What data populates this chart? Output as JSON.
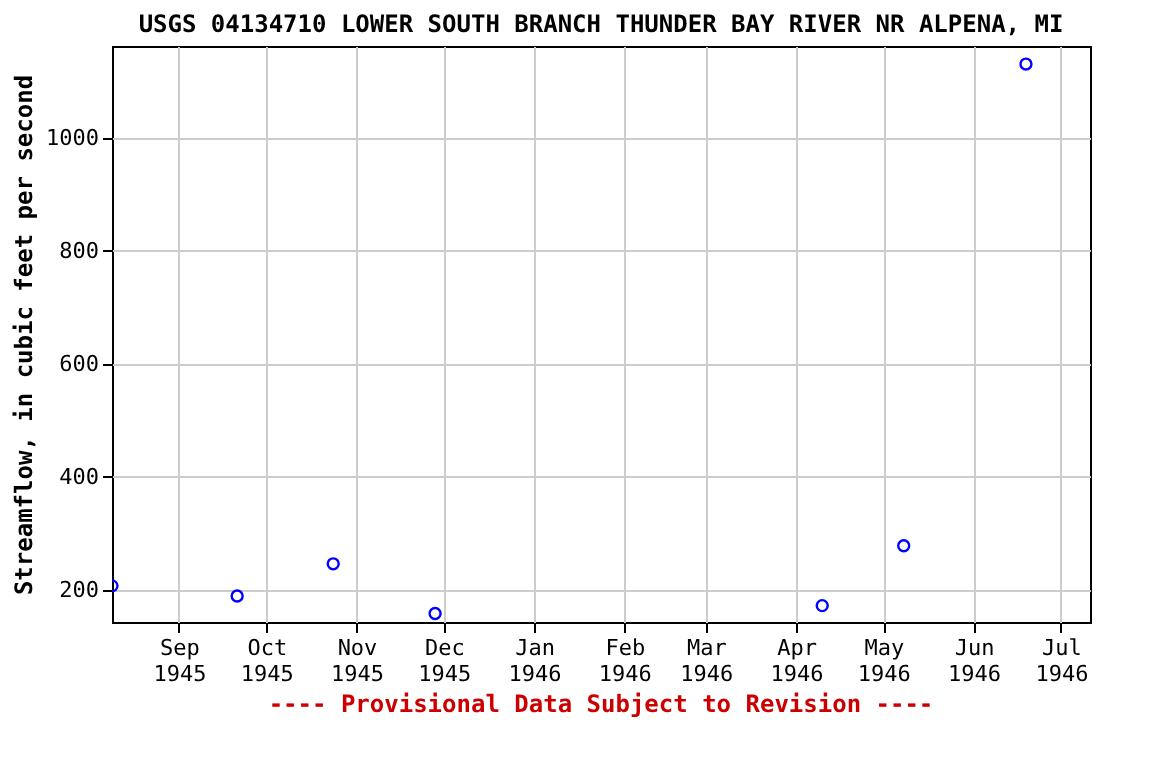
{
  "chart_data": {
    "type": "scatter",
    "title": "USGS 04134710 LOWER SOUTH BRANCH THUNDER BAY RIVER NR ALPENA, MI",
    "ylabel": "Streamflow, in cubic feet per second",
    "x": [
      "1945-08-09",
      "1945-09-21",
      "1945-10-24",
      "1945-11-28",
      "1946-04-10",
      "1946-05-08",
      "1946-06-19"
    ],
    "series": [
      {
        "color": "#0000ff",
        "values": [
          207,
          189,
          246,
          158,
          172,
          278,
          1131
        ]
      }
    ],
    "marker": "circle",
    "grid": true,
    "xlim": [
      "1945-08-09",
      "1946-07-11"
    ],
    "xticks": [
      {
        "value": "1945-09-01",
        "label": "Sep 1945"
      },
      {
        "value": "1945-10-01",
        "label": "Oct 1945"
      },
      {
        "value": "1945-11-01",
        "label": "Nov 1945"
      },
      {
        "value": "1945-12-01",
        "label": "Dec 1945"
      },
      {
        "value": "1946-01-01",
        "label": "Jan 1946"
      },
      {
        "value": "1946-02-01",
        "label": "Feb 1946"
      },
      {
        "value": "1946-03-01",
        "label": "Mar 1946"
      },
      {
        "value": "1946-04-01",
        "label": "Apr 1946"
      },
      {
        "value": "1946-05-01",
        "label": "May 1946"
      },
      {
        "value": "1946-06-01",
        "label": "Jun 1946"
      },
      {
        "value": "1946-07-01",
        "label": "Jul 1946"
      }
    ],
    "ylim": [
      143,
      1163
    ],
    "yticks": [
      200,
      400,
      600,
      800,
      1000
    ],
    "annotations": [
      "---- Provisional Data Subject to Revision ----"
    ]
  }
}
